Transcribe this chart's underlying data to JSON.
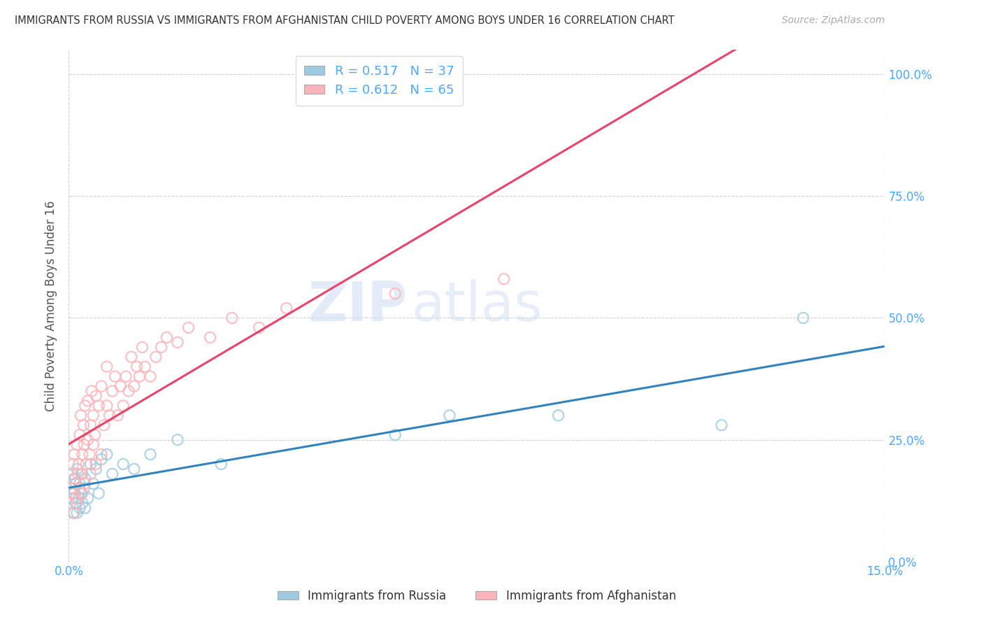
{
  "title": "IMMIGRANTS FROM RUSSIA VS IMMIGRANTS FROM AFGHANISTAN CHILD POVERTY AMONG BOYS UNDER 16 CORRELATION CHART",
  "source": "Source: ZipAtlas.com",
  "ylabel": "Child Poverty Among Boys Under 16",
  "xlim": [
    0.0,
    0.15
  ],
  "ylim": [
    0.0,
    1.05
  ],
  "yticks": [
    0.0,
    0.25,
    0.5,
    0.75,
    1.0
  ],
  "ytick_labels": [
    "0.0%",
    "25.0%",
    "50.0%",
    "75.0%",
    "100.0%"
  ],
  "xticks": [
    0.0,
    0.15
  ],
  "xtick_labels": [
    "0.0%",
    "15.0%"
  ],
  "russia_R": 0.517,
  "russia_N": 37,
  "afghanistan_R": 0.612,
  "afghanistan_N": 65,
  "russia_color": "#9ecae1",
  "afghanistan_color": "#fbb4b9",
  "russia_line_color": "#3182bd",
  "afghanistan_line_color": "#e8436a",
  "watermark_text": "ZIP",
  "watermark_text2": "atlas",
  "legend_label_russia": "Immigrants from Russia",
  "legend_label_afghanistan": "Immigrants from Afghanistan",
  "russia_x": [
    0.0005,
    0.0006,
    0.0007,
    0.0008,
    0.001,
    0.001,
    0.0012,
    0.0013,
    0.0015,
    0.0015,
    0.0018,
    0.002,
    0.002,
    0.0022,
    0.0025,
    0.0025,
    0.0028,
    0.003,
    0.003,
    0.0035,
    0.004,
    0.0045,
    0.005,
    0.0055,
    0.006,
    0.007,
    0.008,
    0.01,
    0.012,
    0.015,
    0.02,
    0.028,
    0.06,
    0.07,
    0.09,
    0.12,
    0.135
  ],
  "russia_y": [
    0.15,
    0.13,
    0.18,
    0.1,
    0.14,
    0.17,
    0.12,
    0.16,
    0.1,
    0.19,
    0.13,
    0.11,
    0.16,
    0.14,
    0.12,
    0.18,
    0.15,
    0.11,
    0.17,
    0.13,
    0.2,
    0.16,
    0.19,
    0.14,
    0.21,
    0.22,
    0.18,
    0.2,
    0.19,
    0.22,
    0.25,
    0.2,
    0.26,
    0.3,
    0.3,
    0.28,
    0.5
  ],
  "afghanistan_x": [
    0.0005,
    0.0007,
    0.0008,
    0.001,
    0.001,
    0.0012,
    0.0013,
    0.0015,
    0.0015,
    0.0017,
    0.0018,
    0.002,
    0.002,
    0.0022,
    0.0022,
    0.0025,
    0.0025,
    0.0027,
    0.0028,
    0.003,
    0.003,
    0.0032,
    0.0035,
    0.0035,
    0.0038,
    0.004,
    0.004,
    0.0042,
    0.0045,
    0.0045,
    0.0048,
    0.005,
    0.005,
    0.0055,
    0.006,
    0.006,
    0.0065,
    0.007,
    0.007,
    0.0075,
    0.008,
    0.0085,
    0.009,
    0.0095,
    0.01,
    0.0105,
    0.011,
    0.0115,
    0.012,
    0.0125,
    0.013,
    0.0135,
    0.014,
    0.015,
    0.016,
    0.017,
    0.018,
    0.02,
    0.022,
    0.026,
    0.03,
    0.035,
    0.04,
    0.06,
    0.08
  ],
  "afghanistan_y": [
    0.15,
    0.14,
    0.2,
    0.1,
    0.22,
    0.17,
    0.13,
    0.12,
    0.24,
    0.18,
    0.2,
    0.15,
    0.26,
    0.18,
    0.3,
    0.14,
    0.22,
    0.28,
    0.24,
    0.16,
    0.32,
    0.2,
    0.25,
    0.33,
    0.22,
    0.18,
    0.28,
    0.35,
    0.24,
    0.3,
    0.26,
    0.2,
    0.34,
    0.32,
    0.22,
    0.36,
    0.28,
    0.32,
    0.4,
    0.3,
    0.35,
    0.38,
    0.3,
    0.36,
    0.32,
    0.38,
    0.35,
    0.42,
    0.36,
    0.4,
    0.38,
    0.44,
    0.4,
    0.38,
    0.42,
    0.44,
    0.46,
    0.45,
    0.48,
    0.46,
    0.5,
    0.48,
    0.52,
    0.55,
    0.58
  ]
}
